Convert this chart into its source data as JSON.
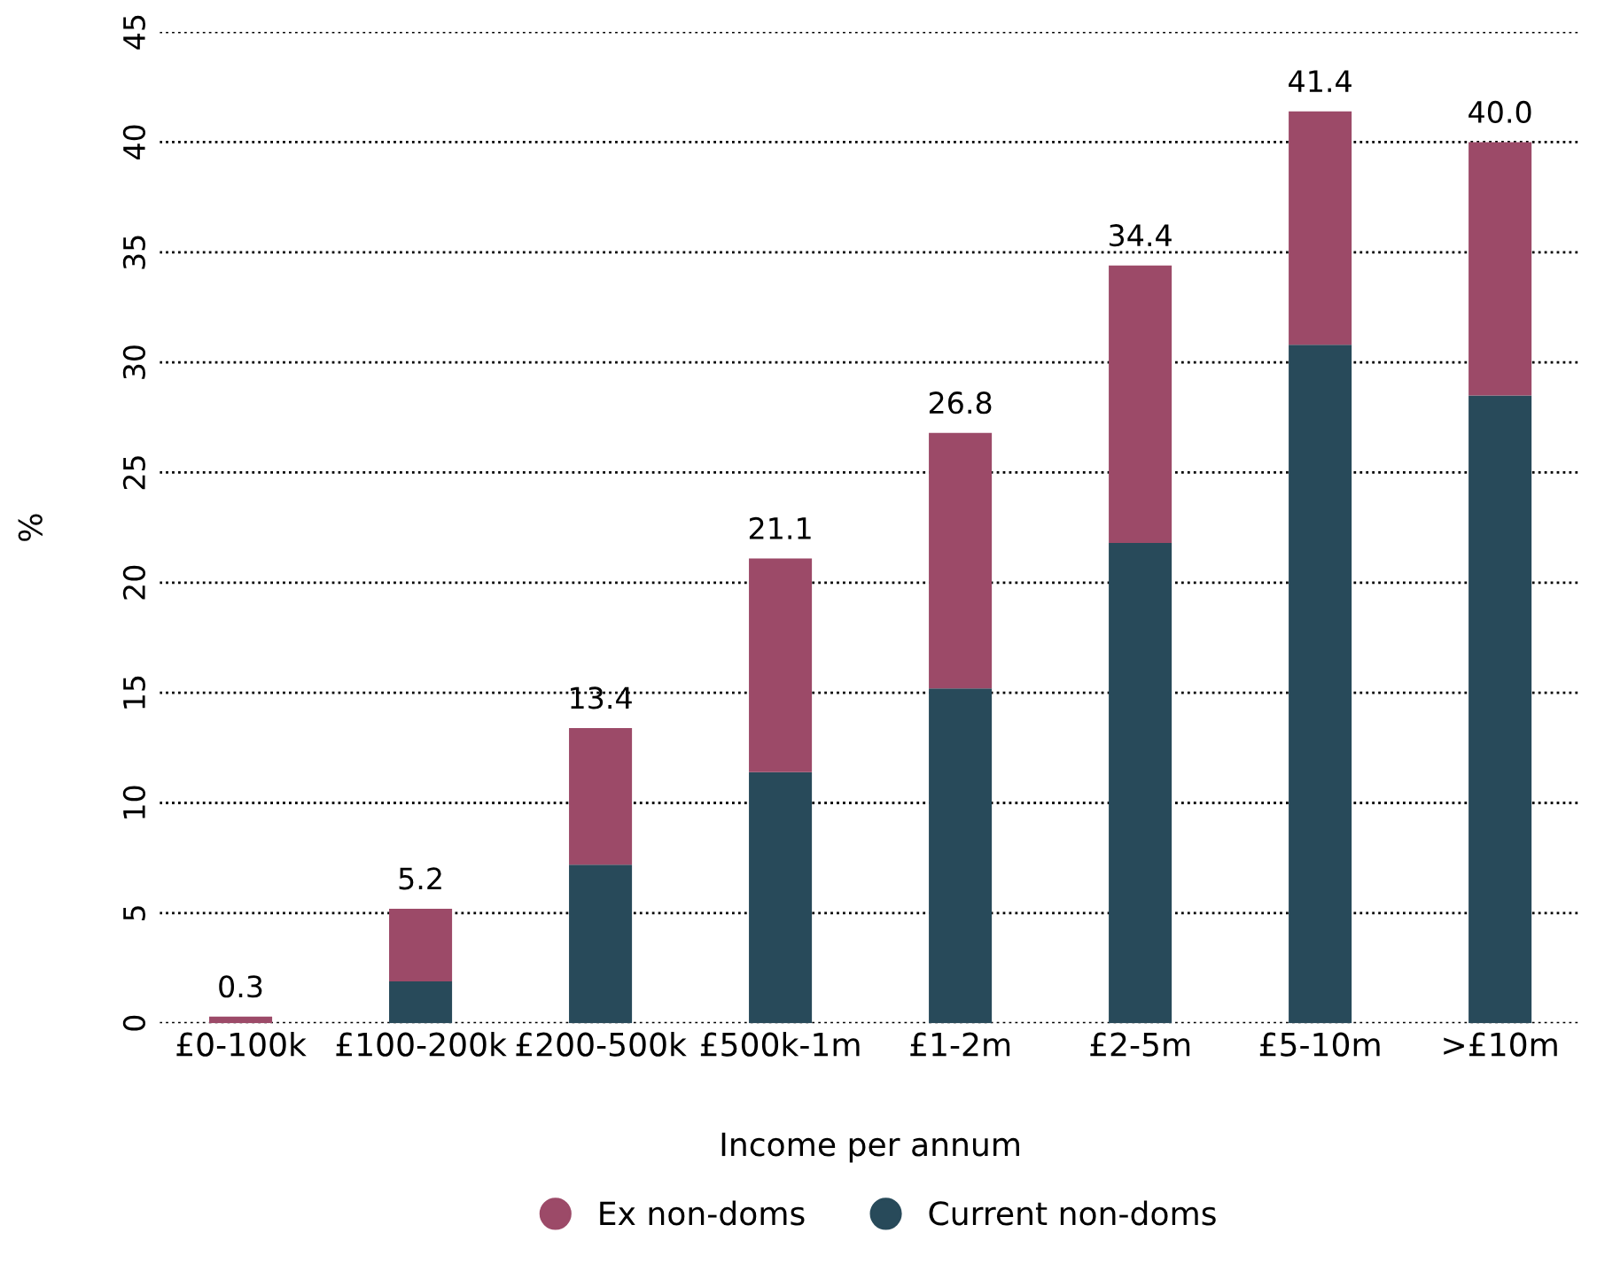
{
  "chart_data": {
    "type": "bar",
    "stacked": true,
    "categories": [
      "£0-100k",
      "£100-200k",
      "£200-500k",
      "£500k-1m",
      "£1-2m",
      "£2-5m",
      "£5-10m",
      ">£10m"
    ],
    "series": [
      {
        "name": "Current non-doms",
        "color": "#284a5a",
        "values": [
          0,
          1.9,
          7.2,
          11.4,
          15.2,
          21.8,
          30.8,
          28.5
        ]
      },
      {
        "name": "Ex non-doms",
        "color": "#9c4a68",
        "values": [
          0.3,
          3.3,
          6.2,
          9.7,
          11.6,
          12.6,
          10.6,
          11.5
        ]
      }
    ],
    "totals": [
      "0.3",
      "5.2",
      "13.4",
      "21.1",
      "26.8",
      "34.4",
      "41.4",
      "40.0"
    ],
    "xlabel": "Income per annum",
    "ylabel": "%",
    "ylim": [
      0,
      45
    ],
    "yticks": [
      0,
      5,
      10,
      15,
      20,
      25,
      30,
      35,
      40,
      45
    ],
    "grid": "y",
    "legend": "bottom"
  }
}
